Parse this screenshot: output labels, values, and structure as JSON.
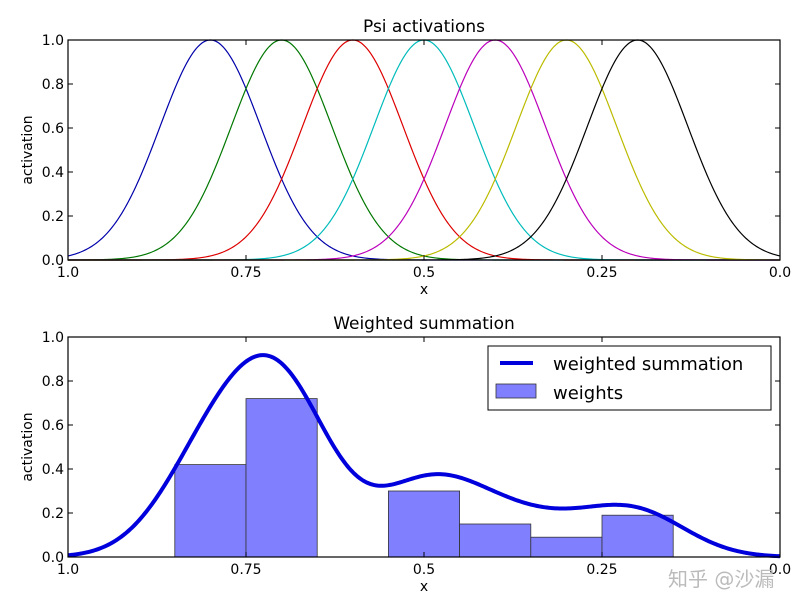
{
  "chart_data": [
    {
      "type": "line",
      "title": "Psi activations",
      "xlabel": "x",
      "ylabel": "activation",
      "xlim": [
        1.0,
        0.0
      ],
      "ylim": [
        0.0,
        1.0
      ],
      "x_inverted": true,
      "grid": false,
      "xticks": [
        "1.0",
        "0.75",
        "0.5",
        "0.25",
        "0.0"
      ],
      "xtick_values": [
        1.0,
        0.75,
        0.5,
        0.25,
        0.0
      ],
      "yticks": [
        "0.0",
        "0.2",
        "0.4",
        "0.6",
        "0.8",
        "1.0"
      ],
      "ytick_values": [
        0,
        0.2,
        0.4,
        0.6,
        0.8,
        1.0
      ],
      "function": "gaussian exp(-h (x - c)^2)",
      "width_h": 100,
      "series": [
        {
          "center": 0.8,
          "color": "#0000aa"
        },
        {
          "center": 0.7,
          "color": "#007700"
        },
        {
          "center": 0.6,
          "color": "#dd0000"
        },
        {
          "center": 0.5,
          "color": "#00bbbb"
        },
        {
          "center": 0.4,
          "color": "#bb00bb"
        },
        {
          "center": 0.3,
          "color": "#bbbb00"
        },
        {
          "center": 0.2,
          "color": "#000000"
        }
      ]
    },
    {
      "type": "bar+line",
      "title": "Weighted summation",
      "xlabel": "x",
      "ylabel": "activation",
      "xlim": [
        1.0,
        0.0
      ],
      "ylim": [
        0.0,
        1.0
      ],
      "x_inverted": true,
      "grid": false,
      "xticks": [
        "1.0",
        "0.75",
        "0.5",
        "0.25",
        "0.0"
      ],
      "xtick_values": [
        1.0,
        0.75,
        0.5,
        0.25,
        0.0
      ],
      "yticks": [
        "0.0",
        "0.2",
        "0.4",
        "0.6",
        "0.8",
        "1.0"
      ],
      "ytick_values": [
        0,
        0.2,
        0.4,
        0.6,
        0.8,
        1.0
      ],
      "legend_placement": "top-right",
      "legend": [
        "weighted summation",
        "weights"
      ],
      "bar_width": 0.1,
      "weights": [
        {
          "center": 0.8,
          "value": 0.42
        },
        {
          "center": 0.7,
          "value": 0.72
        },
        {
          "center": 0.6,
          "value": 0.0
        },
        {
          "center": 0.5,
          "value": 0.3
        },
        {
          "center": 0.4,
          "value": 0.15
        },
        {
          "center": 0.3,
          "value": 0.09
        },
        {
          "center": 0.2,
          "value": 0.19
        }
      ],
      "line_color": "#0000dd",
      "bar_color": "#8080ff"
    }
  ],
  "watermark": "知乎 @沙漏"
}
